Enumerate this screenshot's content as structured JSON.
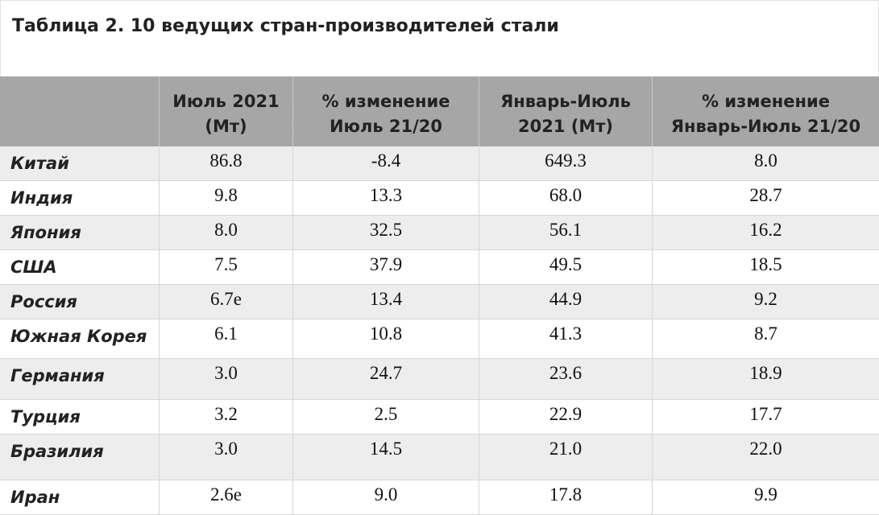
{
  "title": "Таблица 2. 10 ведущих стран-производителей стали",
  "table": {
    "header": [
      [
        "Июль 2021",
        "(Мт)"
      ],
      [
        "% изменение",
        "Июль 21/20"
      ],
      [
        "Январь-Июль",
        "2021 (Мт)"
      ],
      [
        "% изменение",
        "Январь-Июль 21/20"
      ]
    ],
    "rows": [
      [
        "Китай",
        "86.8",
        "-8.4",
        "649.3",
        "8.0"
      ],
      [
        "Индия",
        "9.8",
        "13.3",
        "68.0",
        "28.7"
      ],
      [
        "Япония",
        "8.0",
        "32.5",
        "56.1",
        "16.2"
      ],
      [
        "США",
        "7.5",
        "37.9",
        "49.5",
        "18.5"
      ],
      [
        "Россия",
        "6.7e",
        "13.4",
        "44.9",
        "9.2"
      ],
      [
        "Южная Корея",
        "6.1",
        "10.8",
        "41.3",
        "8.7"
      ],
      [
        "Германия",
        "3.0",
        "24.7",
        "23.6",
        "18.9"
      ],
      [
        "Турция",
        "3.2",
        "2.5",
        "22.9",
        "17.7"
      ],
      [
        "Бразилия",
        "3.0",
        "14.5",
        "21.0",
        "22.0"
      ],
      [
        "Иран",
        "2.6e",
        "9.0",
        "17.8",
        "9.9"
      ]
    ]
  }
}
